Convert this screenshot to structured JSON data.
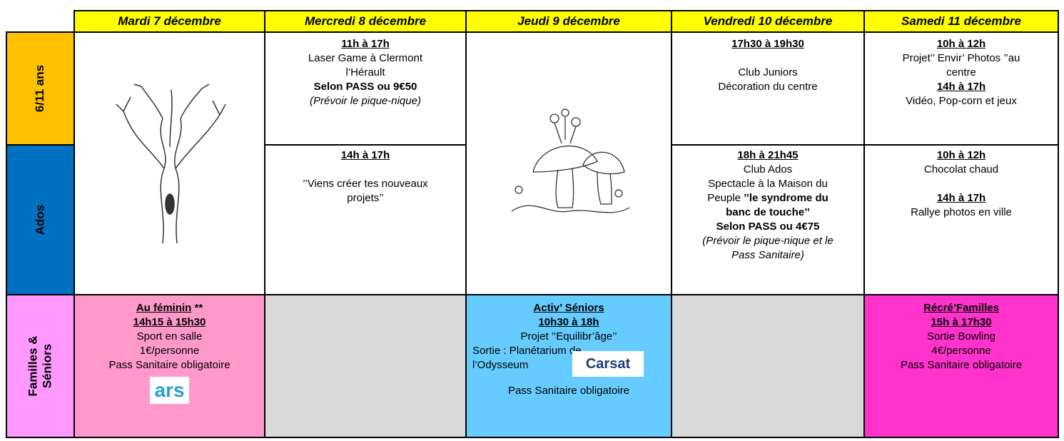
{
  "header": {
    "days": [
      "Mardi 7 décembre",
      "Mercredi 8 décembre",
      "Jeudi 9 décembre",
      "Vendredi 10 décembre",
      "Samedi 11 décembre"
    ]
  },
  "rows": [
    {
      "label": [
        "6/11 ans"
      ],
      "cells": {
        "mercredi": [
          "11h à 17h",
          "Laser Game à Clermont",
          "l’Hérault",
          "Selon PASS ou 9€50",
          "(Prévoir le pique-nique)"
        ],
        "vendredi": [
          "17h30 à 19h30",
          "Club Juniors",
          "Décoration du centre"
        ],
        "samedi": [
          "10h à 12h",
          "Projet’’ Envir’ Photos ’’au",
          "centre",
          "14h à 17h",
          "Vidéo, Pop-corn et jeux"
        ]
      }
    },
    {
      "label": [
        "Ados"
      ],
      "cells": {
        "mercredi": [
          "14h à 17h",
          "’’Viens créer tes nouveaux",
          "projets’’"
        ],
        "vendredi": [
          "18h à 21h45",
          "Club Ados",
          "Spectacle à la Maison du",
          "Peuple",
          "’’le syndrome du",
          "banc de touche’’",
          "Selon PASS ou 4€75",
          "(Prévoir le pique-nique et le",
          "Pass Sanitaire)"
        ],
        "samedi": [
          "10h à 12h",
          "Chocolat chaud",
          "14h à 17h",
          "Rallye photos en ville"
        ]
      }
    },
    {
      "label": [
        "Familles &",
        "Séniors"
      ],
      "cells": {
        "mardi": [
          "Au féminin",
          "**",
          "14h15 à 15h30",
          "Sport en salle",
          "1€/personne",
          "Pass Sanitaire obligatoire",
          "ars"
        ],
        "jeudi": [
          "Activ’ Séniors",
          "10h30 à 18h",
          "Projet ’’Equilibr’âge’’",
          "Sortie : Planétarium de",
          "l’Odysseum",
          "Carsat",
          "Pass Sanitaire obligatoire"
        ],
        "samedi": [
          "Récré’Familles",
          "15h à 17h30",
          "Sortie Bowling",
          "4€/personne",
          "Pass Sanitaire obligatoire"
        ]
      }
    }
  ]
}
